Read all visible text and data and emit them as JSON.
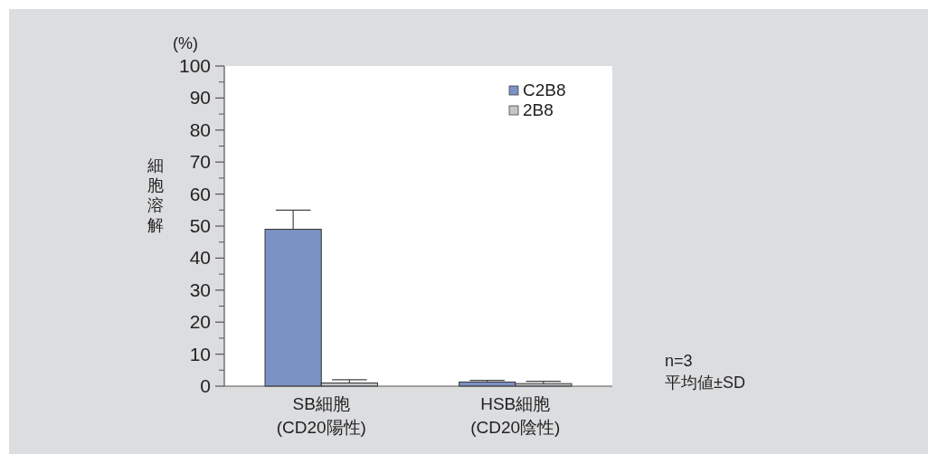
{
  "chart_data": {
    "type": "bar",
    "ylabel": "細胞溶解",
    "annotations": [
      "(%)",
      "n=3\n平均値±SD"
    ],
    "categories": [
      "SB細胞\n(CD20陽性)",
      "HSB細胞\n(CD20陰性)"
    ],
    "series": [
      {
        "name": "C2B8",
        "color": "#7b92c4",
        "values": [
          49,
          1.3
        ],
        "errors": [
          6,
          0.5
        ]
      },
      {
        "name": "2B8",
        "color": "#c4c5c7",
        "values": [
          1,
          0.8
        ],
        "errors": [
          1,
          0.7
        ]
      }
    ],
    "ylim": [
      0,
      100
    ],
    "yticks": [
      0,
      10,
      20,
      30,
      40,
      50,
      60,
      70,
      80,
      90,
      100
    ],
    "grid": false,
    "legend": "top right"
  }
}
